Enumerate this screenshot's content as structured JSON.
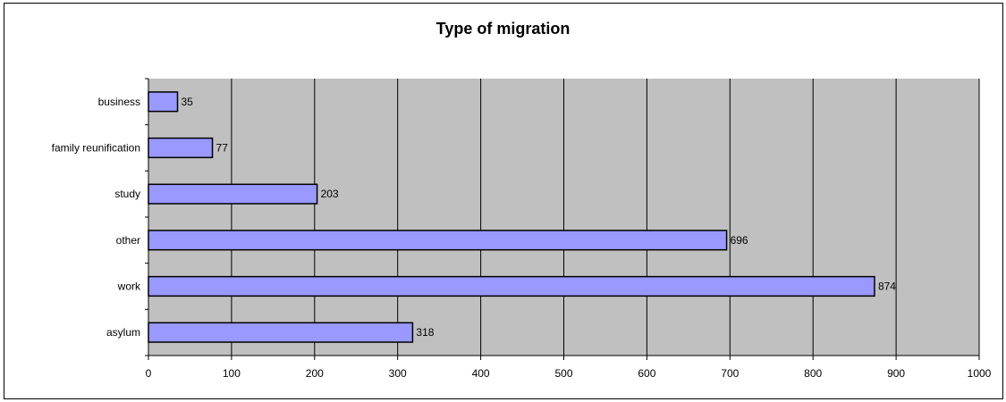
{
  "chart_data": {
    "type": "bar",
    "orientation": "horizontal",
    "title": "Type of migration",
    "categories": [
      "business",
      "family reunification",
      "study",
      "other",
      "work",
      "asylum"
    ],
    "values": [
      35,
      77,
      203,
      696,
      874,
      318
    ],
    "xlim": [
      0,
      1000
    ],
    "x_ticks": [
      "0",
      "100",
      "200",
      "300",
      "400",
      "500",
      "600",
      "700",
      "800",
      "900",
      "1000"
    ],
    "grid": "vertical",
    "legend": "none",
    "colors": {
      "bar_fill": "#9999ff",
      "bar_stroke": "#000000",
      "plot_background": "#c0c0c0",
      "gridline": "#000000"
    }
  }
}
